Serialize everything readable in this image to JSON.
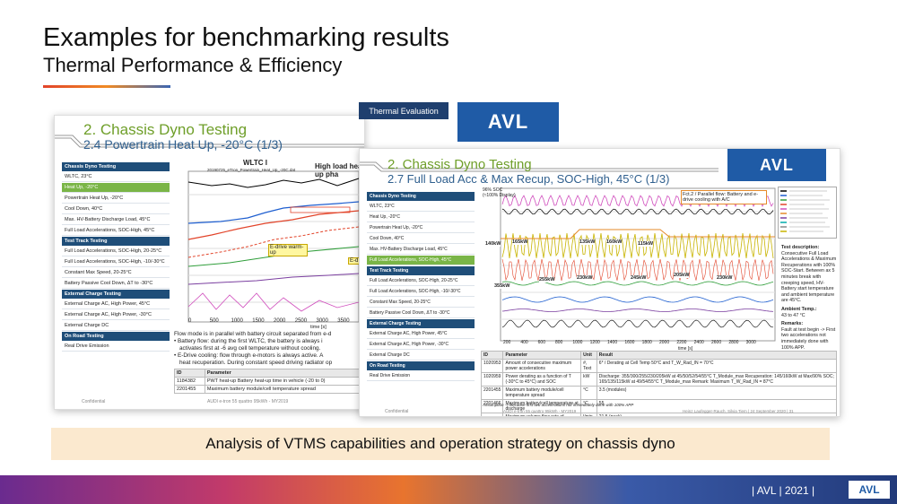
{
  "header": {
    "title": "Examples for benchmarking results",
    "subtitle": "Thermal Performance & Efficiency"
  },
  "badge": {
    "label": "Thermal Evaluation",
    "logo": "AVL"
  },
  "left_slide": {
    "heading": "2. Chassis Dyno Testing",
    "subheading": "2.4 Powertrain Heat Up, -20°C (1/3)",
    "active": [
      0,
      1
    ],
    "menu": [
      {
        "title": "Chassis Dyno Testing",
        "items": [
          "WLTC, 23°C",
          "Heat Up, -20°C",
          "Powertrain Heat Up, -20°C",
          "Cool Down, 40°C",
          "Max. HV-Battery Discharge Load, 45°C",
          "Full Load Accelerations, SOC-High, 45°C"
        ]
      },
      {
        "title": "Test Track Testing",
        "items": [
          "Full Load Accelerations, SOC-High, 20-25°C",
          "Full Load Accelerations, SOC-High, -10/-30°C",
          "Constant Max Speed, 20-25°C",
          "Battery Passive Cool Down, ΔT to -30°C"
        ]
      },
      {
        "title": "External Charge Testing",
        "items": [
          "External Charge AC, High Power, 45°C",
          "External Charge AC, High Power, -30°C",
          "External Charge DC"
        ]
      },
      {
        "title": "On Road Testing",
        "items": [
          "Real Drive Emission"
        ]
      }
    ],
    "chart_title": "WLTC I",
    "chart_legend": "20190725_eTron_Powertrain_Heat_Up_-20C.dat",
    "annotations": [
      "High load heat-up pha",
      "E-drive warm-up",
      "E-d A/C"
    ],
    "x_ticks": [
      "0",
      "500",
      "1000",
      "1500",
      "2000",
      "2500",
      "3000",
      "3500"
    ],
    "x_label": "time [s]",
    "notes": [
      "Flow mode is in parallel with battery circuit separated from e-d",
      "• Battery flow: during the first WLTC, the battery is always i",
      "activates first at -6 avg cell temperature without cooling.",
      "• E-Drive cooling: flow through e-motors is always active. A",
      "heat recuperation. During constant speed driving radiator op"
    ],
    "table": {
      "header": [
        "ID",
        "Parameter"
      ],
      "rows": [
        [
          "1184382",
          "PWT heat-up Battery heat-up time in vehicle (-20 to 0)"
        ],
        [
          "2201455",
          "Maximum battery module/cell temperature spread"
        ]
      ]
    },
    "footer": [
      "Confidential",
      "AUDI e-tron 55 quattro 95kWh - MY2019"
    ]
  },
  "right_slide": {
    "logo": "AVL",
    "heading": "2. Chassis Dyno Testing",
    "subheading": "2.7 Full Load Acc & Max Recup, SOC-High, 45°C (1/3)",
    "active": [
      0,
      5
    ],
    "menu": [
      {
        "title": "Chassis Dyno Testing",
        "items": [
          "WLTC, 23°C",
          "Heat Up, -20°C",
          "Powertrain Heat Up, -20°C",
          "Cool Down, 40°C",
          "Max. HV-Battery Discharge Load, 45°C",
          "Full Load Accelerations, SOC-High, 45°C"
        ]
      },
      {
        "title": "Test Track Testing",
        "items": [
          "Full Load Accelerations, SOC-High, 20-25°C",
          "Full Load Accelerations, SOC-High, -10/-30°C",
          "Constant Max Speed, 20-25°C",
          "Battery Passive Cool Down, ΔT to -30°C"
        ]
      },
      {
        "title": "External Charge Testing",
        "items": [
          "External Charge AC, High Power, 45°C",
          "External Charge AC, High Power, -30°C",
          "External Charge DC"
        ]
      },
      {
        "title": "On Road Testing",
        "items": [
          "Real Drive Emission"
        ]
      }
    ],
    "chart_note": "96% SOC (≈100% Display)",
    "callout": "Fct.2 / Parallel flow: Battery and e-drive cooling with A/C",
    "power_labels": [
      "140kW",
      "165kW",
      "135kW",
      "160kW",
      "115kW",
      "355kW",
      "255kW",
      "230kW",
      "245kW",
      "205kW",
      "230kW"
    ],
    "x_ticks": [
      "200",
      "400",
      "600",
      "800",
      "1000",
      "1200",
      "1400",
      "1600",
      "1800",
      "2000",
      "2200",
      "2400",
      "2600",
      "2800",
      "3000"
    ],
    "x_label": "time [s]",
    "description": [
      {
        "title": "Test description:",
        "text": "Consecutive Full Load Accelerations & Maximum Recuperations with 100% SOC-Start. Between ax 5 minutes break with creeping speed, HV-Battery start temperature and ambient temperature are 45°C."
      },
      {
        "title": "Ambient Temp.:",
        "text": "43 to 47 °C"
      },
      {
        "title": "Remarks:",
        "text": "Fault at test begin -> First two accelerations not immediately done with 100% APP."
      }
    ],
    "table": {
      "header": [
        "ID",
        "Parameter",
        "Unit",
        "Result"
      ],
      "rows": [
        [
          "1020953",
          "Amount of consecutive maximum power accelerations",
          "#, Text",
          "6* / Derating at Cell Temp 50°C and T_W_Rad_IN = 70°C"
        ],
        [
          "1020959",
          "Power derating as a function of T (-30°C to 45°C) and SOC",
          "kW",
          "Discharge: 355/300/255/230/205kW at 45/50/52/54/55°C T_Module_max Recuperation: 145/160kW at Max/90% SOC; 165/135/115kW at 49/54/55°C T_Module_max Remark: Maximum T_W_Rad_IN = 87°C"
        ],
        [
          "2201455",
          "Maximum battery module/cell temperature spread",
          "°C",
          "3.5 (modules)"
        ],
        [
          "2201466",
          "Maximum battery/cell temperature at discharge",
          "°C",
          "55"
        ],
        [
          "-",
          "Maximum volume flow rate of battery coolant",
          "l/min",
          "21.5 (peak)"
        ]
      ]
    },
    "footnote": "Assumption -> Because first two accelerations not immediately done with 100% APP",
    "footer": [
      "Confidential",
      "AUDI e-tron 55 quattro 95kWh - MY2019",
      "Heinz Laufegger-Rauch, Silvia Tiem | 24 September 2020 | 31"
    ]
  },
  "caption": "Analysis of VTMS capabilities and operation strategy on chassis dyno",
  "footer": {
    "text": "| AVL | 2021 |",
    "logo": "AVL"
  }
}
